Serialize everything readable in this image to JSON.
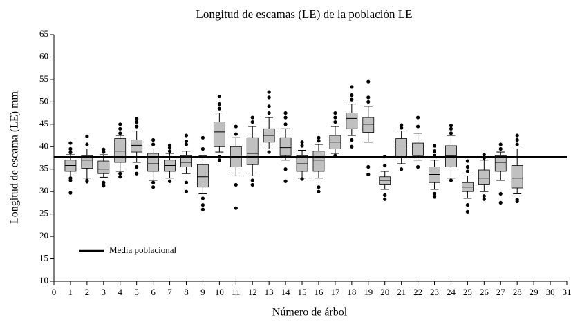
{
  "chart_data": {
    "type": "box",
    "title": "Longitud de escamas (LE) de la población LE",
    "xlabel": "Número de árbol",
    "ylabel": "Longitud de escama (LE) mm",
    "xlim": [
      0,
      31
    ],
    "xticks": [
      0,
      1,
      2,
      3,
      4,
      5,
      6,
      7,
      8,
      9,
      10,
      11,
      12,
      13,
      14,
      15,
      16,
      17,
      18,
      19,
      20,
      21,
      22,
      23,
      24,
      25,
      26,
      27,
      28,
      29,
      30,
      31
    ],
    "ylim": [
      10,
      65
    ],
    "yticks": [
      10,
      15,
      20,
      25,
      30,
      35,
      40,
      45,
      50,
      55,
      60,
      65
    ],
    "color": "#c0c0c0",
    "reference_line": {
      "name": "Media poblacional",
      "value": 37.7,
      "color": "#000000"
    },
    "legend": "lower left",
    "x": [
      1,
      2,
      3,
      4,
      5,
      6,
      7,
      8,
      9,
      10,
      11,
      12,
      13,
      14,
      15,
      16,
      17,
      18,
      19,
      20,
      21,
      22,
      23,
      24,
      25,
      26,
      27,
      28
    ],
    "boxes": [
      {
        "low": 33.5,
        "q1": 34.5,
        "median": 35.8,
        "q3": 37,
        "high": 38.2,
        "outliers": [
          29.7,
          32.5,
          33,
          38.7,
          39.5,
          40.8
        ]
      },
      {
        "low": 33,
        "q1": 35.2,
        "median": 37,
        "q3": 38,
        "high": 39.5,
        "outliers": [
          32.2,
          32.5,
          40.5,
          42.3
        ]
      },
      {
        "low": 33.2,
        "q1": 34,
        "median": 35,
        "q3": 36.8,
        "high": 38.2,
        "outliers": [
          31.3,
          32,
          38.8,
          39.4
        ]
      },
      {
        "low": 34.5,
        "q1": 36.5,
        "median": 39,
        "q3": 41.8,
        "high": 42.5,
        "outliers": [
          33.3,
          34,
          43,
          44,
          45
        ]
      },
      {
        "low": 36.5,
        "q1": 38.8,
        "median": 40.3,
        "q3": 41.5,
        "high": 43.5,
        "outliers": [
          34,
          35.5,
          44.5,
          45.5,
          46.2
        ]
      },
      {
        "low": 32.5,
        "q1": 34.5,
        "median": 36.2,
        "q3": 38.5,
        "high": 39.5,
        "outliers": [
          31,
          32,
          40.5,
          41.5
        ]
      },
      {
        "low": 33,
        "q1": 34.5,
        "median": 35.8,
        "q3": 37,
        "high": 38.5,
        "outliers": [
          32.3,
          39,
          39.8,
          40.3
        ]
      },
      {
        "low": 34,
        "q1": 35.5,
        "median": 36.5,
        "q3": 38,
        "high": 39,
        "outliers": [
          30,
          32,
          40.5,
          41.2,
          42.5
        ]
      },
      {
        "low": 29.5,
        "q1": 31,
        "median": 33.3,
        "q3": 36,
        "high": 38,
        "outliers": [
          26,
          27,
          28.5,
          39.5,
          42
        ]
      },
      {
        "low": 38.8,
        "q1": 40,
        "median": 43.3,
        "q3": 45.5,
        "high": 47.5,
        "outliers": [
          37,
          37.8,
          48.5,
          49.5,
          51.2
        ]
      },
      {
        "low": 33.5,
        "q1": 35.5,
        "median": 37.8,
        "q3": 40,
        "high": 42,
        "outliers": [
          26.3,
          31.5,
          42.8,
          44.5
        ]
      },
      {
        "low": 33.5,
        "q1": 36,
        "median": 38.5,
        "q3": 42,
        "high": 44.5,
        "outliers": [
          31.5,
          32.5,
          45.5,
          46.5
        ]
      },
      {
        "low": 39.5,
        "q1": 41,
        "median": 42.5,
        "q3": 44,
        "high": 46.5,
        "outliers": [
          38.8,
          47.5,
          49,
          51,
          52.2
        ]
      },
      {
        "low": 37,
        "q1": 38,
        "median": 39.8,
        "q3": 42,
        "high": 44,
        "outliers": [
          32.3,
          35,
          45,
          46.5,
          47.5
        ]
      },
      {
        "low": 33,
        "q1": 34.5,
        "median": 36.2,
        "q3": 38,
        "high": 39.2,
        "outliers": [
          32.8,
          40.2,
          41
        ]
      },
      {
        "low": 33,
        "q1": 34.5,
        "median": 37,
        "q3": 39,
        "high": 40.5,
        "outliers": [
          30,
          31,
          41.3,
          42
        ]
      },
      {
        "low": 38.5,
        "q1": 39.5,
        "median": 41,
        "q3": 42.5,
        "high": 44.5,
        "outliers": [
          38,
          45.5,
          46.5,
          47.5
        ]
      },
      {
        "low": 42.5,
        "q1": 44,
        "median": 46.3,
        "q3": 47.5,
        "high": 49.5,
        "outliers": [
          40,
          41.5,
          50.5,
          51.5,
          53.3
        ]
      },
      {
        "low": 41,
        "q1": 43.2,
        "median": 45,
        "q3": 46.5,
        "high": 49,
        "outliers": [
          33.8,
          35.5,
          50,
          51,
          54.5
        ]
      },
      {
        "low": 30.5,
        "q1": 31.5,
        "median": 32.5,
        "q3": 33.3,
        "high": 34.5,
        "outliers": [
          28.3,
          29.2,
          35.8,
          37.8
        ]
      },
      {
        "low": 36.2,
        "q1": 37.5,
        "median": 39.5,
        "q3": 41.8,
        "high": 43.5,
        "outliers": [
          35,
          44.2,
          44.8
        ]
      },
      {
        "low": 37,
        "q1": 38,
        "median": 39.5,
        "q3": 40.8,
        "high": 43,
        "outliers": [
          35.5,
          44.5,
          46.5
        ]
      },
      {
        "low": 30.5,
        "q1": 32,
        "median": 33.8,
        "q3": 35.5,
        "high": 37,
        "outliers": [
          28.8,
          29.5,
          38,
          39,
          40.2
        ]
      },
      {
        "low": 33,
        "q1": 35.5,
        "median": 38,
        "q3": 40.2,
        "high": 42.5,
        "outliers": [
          32.5,
          43,
          44,
          44.7
        ]
      },
      {
        "low": 28.5,
        "q1": 30,
        "median": 31,
        "q3": 32,
        "high": 33.5,
        "outliers": [
          25.5,
          27,
          34.5,
          35.5,
          36.8
        ]
      },
      {
        "low": 30,
        "q1": 31.5,
        "median": 33,
        "q3": 34.8,
        "high": 37,
        "outliers": [
          28.3,
          29,
          37.5,
          38.2
        ]
      },
      {
        "low": 32.5,
        "q1": 34.5,
        "median": 36.5,
        "q3": 38,
        "high": 38.8,
        "outliers": [
          27.5,
          29.5,
          39.5,
          40.5
        ]
      },
      {
        "low": 29.5,
        "q1": 30.8,
        "median": 33,
        "q3": 35.8,
        "high": 39.5,
        "outliers": [
          27.8,
          28.2,
          40.5,
          41.5,
          42.5
        ]
      }
    ]
  }
}
